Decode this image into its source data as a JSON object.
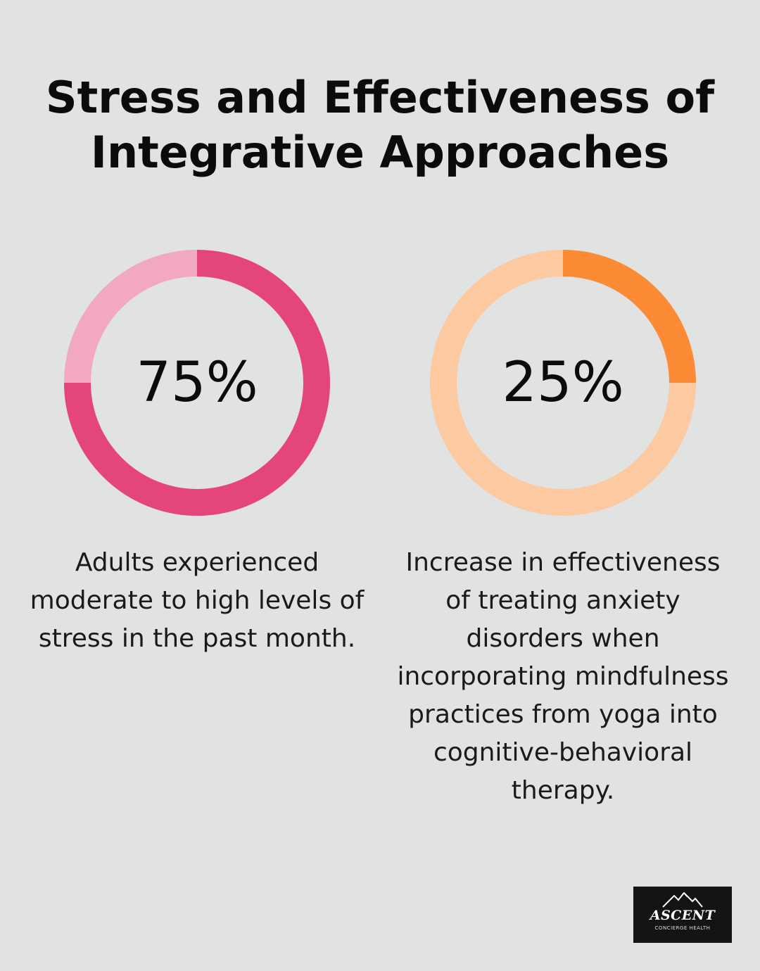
{
  "title": {
    "line1": "Stress and Effectiveness of",
    "line2": "Integrative Approaches"
  },
  "chart_data": [
    {
      "type": "donut",
      "value": 75,
      "label": "75%",
      "description": "Adults experienced moderate to high levels of stress in the past month.",
      "colors": {
        "filled": "#e5467a",
        "remaining": "#f2a9c0"
      }
    },
    {
      "type": "donut",
      "value": 25,
      "label": "25%",
      "description": "Increase in effectiveness of treating anxiety disorders when incorporating mindfulness practices from yoga into cognitive-behavioral therapy.",
      "colors": {
        "filled": "#fb8c35",
        "remaining": "#fcc9a0"
      }
    }
  ],
  "logo": {
    "name": "ASCENT",
    "subtitle": "CONCIERGE HEALTH",
    "icon": "mountain-icon"
  }
}
